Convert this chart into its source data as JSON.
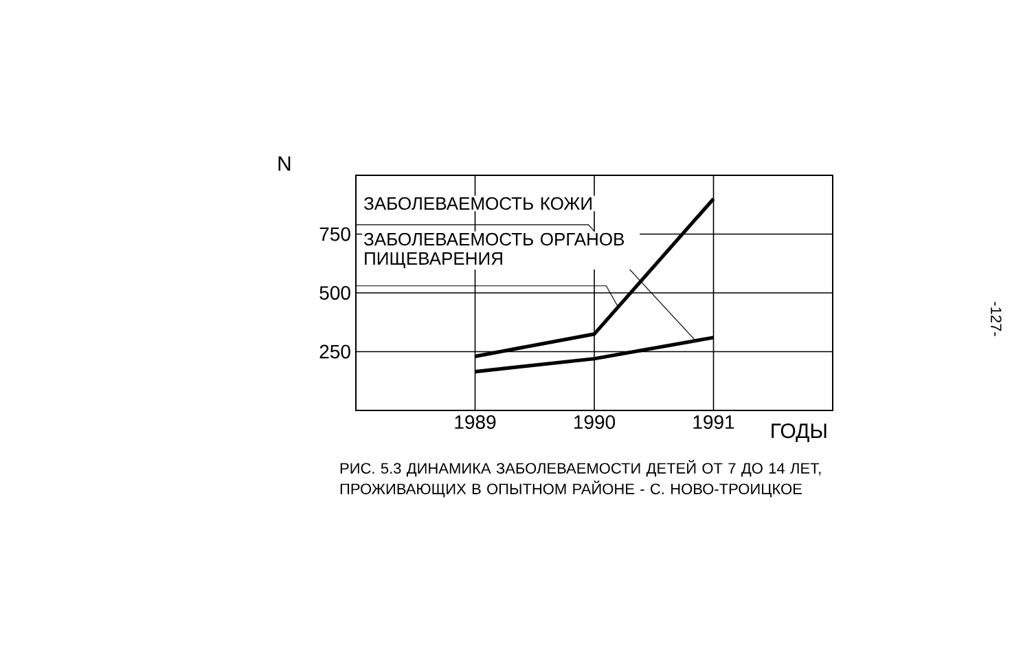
{
  "chart_data": {
    "type": "line",
    "xlabel": "ГОДЫ",
    "ylabel": "N",
    "x": [
      1989,
      1990,
      1991
    ],
    "series": [
      {
        "name": "ЗАБОЛЕВАЕМОСТЬ КОЖИ",
        "color": "#000000",
        "values": [
          165,
          220,
          310
        ]
      },
      {
        "name": "ЗАБОЛЕВАЕМОСТЬ ОРГАНОВ ПИЩЕВАРЕНИЯ",
        "color": "#000000",
        "values": [
          230,
          325,
          900
        ]
      }
    ],
    "xlim": [
      1988,
      1992
    ],
    "ylim": [
      0,
      1000
    ],
    "xticks": [
      1989,
      1990,
      1991
    ],
    "yticks": [
      250,
      500,
      750
    ],
    "grid": true,
    "annotations": [
      "РИС. 5.3 ДИНАМИКА ЗАБОЛЕВАЕМОСТИ ДЕТЕЙ ОТ 7 ДО 14 ЛЕТ, ПРОЖИВАЮЩИХ В ОПЫТНОМ РАЙОНЕ - С. НОВО-ТРОИЦКОЕ",
      "-127-"
    ]
  }
}
